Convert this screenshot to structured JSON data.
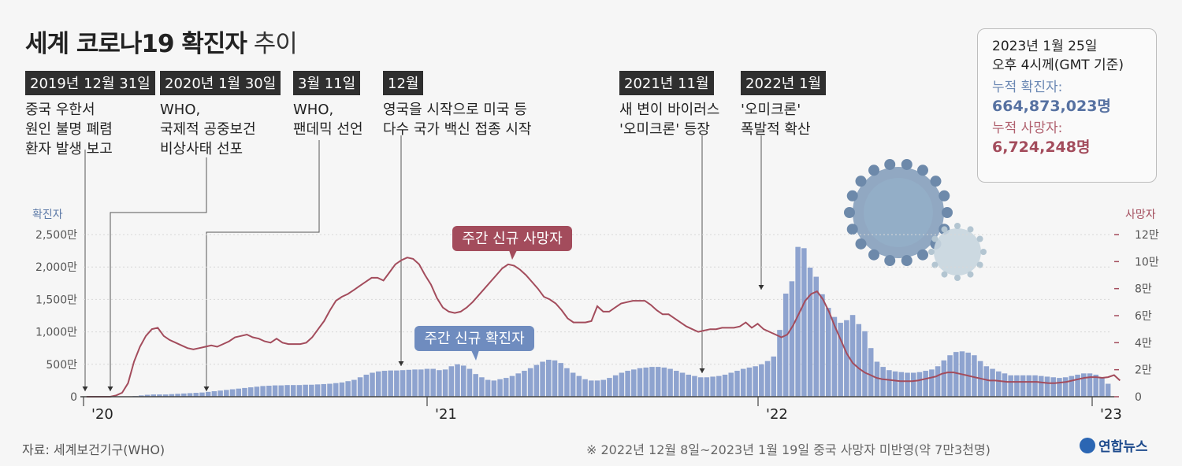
{
  "title_bold": "세계 코로나19 확진자",
  "title_light": "추이",
  "events": [
    {
      "label": "2019년 12월 31일",
      "lines": [
        "중국 우한서",
        "원인 불명 폐렴",
        "환자 발생 보고"
      ]
    },
    {
      "label": "2020년 1월 30일",
      "lines": [
        "WHO,",
        "국제적 공중보건",
        "비상사태 선포"
      ]
    },
    {
      "label": "3월 11일",
      "lines": [
        "WHO,",
        "팬데믹 선언"
      ]
    },
    {
      "label": "12월",
      "lines": [
        "영국을 시작으로 미국 등",
        "다수 국가 백신 접종 시작"
      ]
    },
    {
      "label": "2021년 11월",
      "lines": [
        "새 변이 바이러스",
        "'오미크론' 등장"
      ]
    },
    {
      "label": "2022년 1월",
      "lines": [
        "'오미크론'",
        "폭발적 확산"
      ]
    }
  ],
  "info": {
    "date": "2023년 1월 25일",
    "time": "오후 4시께(GMT 기준)",
    "cases_label": "누적 확진자:",
    "cases_value": "664,873,023명",
    "deaths_label": "누적 사망자:",
    "deaths_value": "6,724,248명"
  },
  "source": "자료: 세계보건기구(WHO)",
  "note": "※ 2022년 12월 8일~2023년 1월 19일 중국 사망자 미반영(약 7만3천명)",
  "logo": "연합뉴스",
  "colors": {
    "cases": "#8ea3cf",
    "cases_label": "#6f8cbf",
    "deaths": "#a34c5c",
    "deaths_label": "#a34c5c"
  },
  "chart_data": {
    "type": "bar+line",
    "x_tick_labels": [
      "'20",
      "'21",
      "'22",
      "'23"
    ],
    "left_axis": {
      "label": "확진자",
      "ticks": [
        "0",
        "500만",
        "1,000만",
        "1,500만",
        "2,000만",
        "2,500만"
      ],
      "range": [
        0,
        2500
      ]
    },
    "right_axis": {
      "label": "사망자",
      "ticks": [
        "0",
        "2만",
        "4만",
        "6만",
        "8만",
        "10만",
        "12만"
      ],
      "range": [
        0,
        12
      ]
    },
    "series": [
      {
        "name": "주간 신규 확진자",
        "kind": "bar",
        "unit": "만명",
        "values": [
          0,
          0,
          0,
          0,
          0,
          0,
          1,
          3,
          10,
          20,
          30,
          35,
          35,
          35,
          40,
          45,
          50,
          55,
          60,
          65,
          75,
          85,
          95,
          105,
          115,
          125,
          135,
          145,
          155,
          165,
          170,
          175,
          175,
          180,
          180,
          180,
          185,
          185,
          190,
          195,
          200,
          210,
          220,
          240,
          260,
          300,
          340,
          370,
          390,
          400,
          405,
          405,
          410,
          415,
          420,
          420,
          430,
          430,
          410,
          420,
          470,
          500,
          480,
          430,
          350,
          300,
          260,
          250,
          270,
          290,
          320,
          360,
          400,
          440,
          490,
          540,
          570,
          560,
          520,
          440,
          370,
          320,
          270,
          250,
          250,
          260,
          290,
          330,
          370,
          400,
          420,
          440,
          450,
          460,
          460,
          450,
          430,
          400,
          370,
          340,
          320,
          300,
          300,
          310,
          320,
          340,
          370,
          400,
          430,
          450,
          470,
          500,
          550,
          620,
          1030,
          1590,
          1780,
          2310,
          2290,
          1990,
          1850,
          1580,
          1370,
          1230,
          1140,
          1180,
          1260,
          1120,
          1010,
          750,
          540,
          460,
          410,
          390,
          380,
          370,
          370,
          380,
          400,
          420,
          470,
          560,
          640,
          690,
          700,
          680,
          640,
          550,
          470,
          430,
          390,
          360,
          330,
          330,
          330,
          330,
          330,
          320,
          310,
          300,
          290,
          300,
          320,
          340,
          360,
          360,
          340,
          290,
          200
        ]
      },
      {
        "name": "주간 신규 사망자",
        "kind": "line",
        "unit": "만명",
        "points": [
          [
            0,
            0
          ],
          [
            2,
            0
          ],
          [
            4,
            0
          ],
          [
            5,
            0.1
          ],
          [
            6,
            0.3
          ],
          [
            7,
            1
          ],
          [
            8,
            2.6
          ],
          [
            9,
            3.7
          ],
          [
            10,
            4.5
          ],
          [
            11,
            5
          ],
          [
            12,
            5.1
          ],
          [
            13,
            4.5
          ],
          [
            14,
            4.2
          ],
          [
            15,
            4
          ],
          [
            16,
            3.8
          ],
          [
            17,
            3.6
          ],
          [
            18,
            3.5
          ],
          [
            19,
            3.6
          ],
          [
            20,
            3.7
          ],
          [
            21,
            3.8
          ],
          [
            22,
            3.7
          ],
          [
            23,
            3.9
          ],
          [
            24,
            4.1
          ],
          [
            25,
            4.4
          ],
          [
            26,
            4.5
          ],
          [
            27,
            4.6
          ],
          [
            28,
            4.4
          ],
          [
            29,
            4.3
          ],
          [
            30,
            4.1
          ],
          [
            31,
            4
          ],
          [
            32,
            4.3
          ],
          [
            33,
            4
          ],
          [
            34,
            3.9
          ],
          [
            35,
            3.9
          ],
          [
            36,
            3.9
          ],
          [
            37,
            4
          ],
          [
            38,
            4.4
          ],
          [
            39,
            5
          ],
          [
            40,
            5.6
          ],
          [
            41,
            6.4
          ],
          [
            42,
            7.1
          ],
          [
            43,
            7.4
          ],
          [
            44,
            7.6
          ],
          [
            45,
            7.9
          ],
          [
            46,
            8.2
          ],
          [
            47,
            8.5
          ],
          [
            48,
            8.8
          ],
          [
            49,
            8.8
          ],
          [
            50,
            8.6
          ],
          [
            51,
            9.2
          ],
          [
            52,
            9.8
          ],
          [
            53,
            10.1
          ],
          [
            54,
            10.3
          ],
          [
            55,
            10.2
          ],
          [
            56,
            9.8
          ],
          [
            57,
            9
          ],
          [
            58,
            8.3
          ],
          [
            59,
            7.3
          ],
          [
            60,
            6.6
          ],
          [
            61,
            6.3
          ],
          [
            62,
            6.2
          ],
          [
            63,
            6.3
          ],
          [
            64,
            6.6
          ],
          [
            65,
            7
          ],
          [
            66,
            7.5
          ],
          [
            67,
            8
          ],
          [
            68,
            8.5
          ],
          [
            69,
            9
          ],
          [
            70,
            9.5
          ],
          [
            71,
            9.8
          ],
          [
            72,
            9.7
          ],
          [
            73,
            9.4
          ],
          [
            74,
            9
          ],
          [
            75,
            8.5
          ],
          [
            76,
            8
          ],
          [
            77,
            7.4
          ],
          [
            78,
            7.2
          ],
          [
            79,
            6.9
          ],
          [
            80,
            6.4
          ],
          [
            81,
            5.8
          ],
          [
            82,
            5.5
          ],
          [
            83,
            5.5
          ],
          [
            84,
            5.5
          ],
          [
            85,
            5.6
          ],
          [
            86,
            6.7
          ],
          [
            87,
            6.3
          ],
          [
            88,
            6.3
          ],
          [
            89,
            6.6
          ],
          [
            90,
            6.9
          ],
          [
            91,
            7
          ],
          [
            92,
            7.1
          ],
          [
            93,
            7.1
          ],
          [
            94,
            7.1
          ],
          [
            95,
            6.8
          ],
          [
            96,
            6.4
          ],
          [
            97,
            6.1
          ],
          [
            98,
            6.1
          ],
          [
            99,
            5.8
          ],
          [
            100,
            5.5
          ],
          [
            101,
            5.2
          ],
          [
            102,
            5
          ],
          [
            103,
            4.8
          ],
          [
            104,
            4.9
          ],
          [
            105,
            5
          ],
          [
            106,
            5
          ],
          [
            107,
            5.1
          ],
          [
            108,
            5.1
          ],
          [
            109,
            5.1
          ],
          [
            110,
            5.2
          ],
          [
            111,
            5.5
          ],
          [
            112,
            5.1
          ],
          [
            113,
            5.4
          ],
          [
            114,
            5
          ],
          [
            115,
            4.8
          ],
          [
            116,
            4.6
          ],
          [
            117,
            4.4
          ],
          [
            118,
            4.6
          ],
          [
            119,
            5.3
          ],
          [
            120,
            6.2
          ],
          [
            121,
            7.1
          ],
          [
            122,
            7.6
          ],
          [
            123,
            7.8
          ],
          [
            124,
            7.2
          ],
          [
            125,
            6.3
          ],
          [
            126,
            5.2
          ],
          [
            127,
            4.2
          ],
          [
            128,
            3.2
          ],
          [
            129,
            2.5
          ],
          [
            130,
            2.1
          ],
          [
            131,
            1.8
          ],
          [
            132,
            1.6
          ],
          [
            133,
            1.4
          ],
          [
            134,
            1.3
          ],
          [
            135,
            1.25
          ],
          [
            136,
            1.2
          ],
          [
            137,
            1.15
          ],
          [
            138,
            1.15
          ],
          [
            139,
            1.15
          ],
          [
            140,
            1.2
          ],
          [
            141,
            1.3
          ],
          [
            142,
            1.4
          ],
          [
            143,
            1.5
          ],
          [
            144,
            1.7
          ],
          [
            145,
            1.8
          ],
          [
            146,
            1.8
          ],
          [
            147,
            1.7
          ],
          [
            148,
            1.6
          ],
          [
            149,
            1.5
          ],
          [
            150,
            1.4
          ],
          [
            151,
            1.3
          ],
          [
            152,
            1.2
          ],
          [
            153,
            1.2
          ],
          [
            154,
            1.15
          ],
          [
            155,
            1.1
          ],
          [
            156,
            1.1
          ],
          [
            157,
            1.1
          ],
          [
            158,
            1.1
          ],
          [
            159,
            1.1
          ],
          [
            160,
            1.1
          ],
          [
            161,
            1.05
          ],
          [
            162,
            1.0
          ],
          [
            163,
            1.0
          ],
          [
            164,
            1.05
          ],
          [
            165,
            1.1
          ],
          [
            166,
            1.2
          ],
          [
            167,
            1.3
          ],
          [
            168,
            1.4
          ],
          [
            169,
            1.45
          ],
          [
            170,
            1.45
          ],
          [
            171,
            1.4
          ],
          [
            172,
            1.45
          ],
          [
            173,
            1.6
          ],
          [
            174,
            1.2
          ]
        ]
      }
    ],
    "annotations": [
      "주간 신규 사망자",
      "주간 신규 확진자"
    ]
  }
}
